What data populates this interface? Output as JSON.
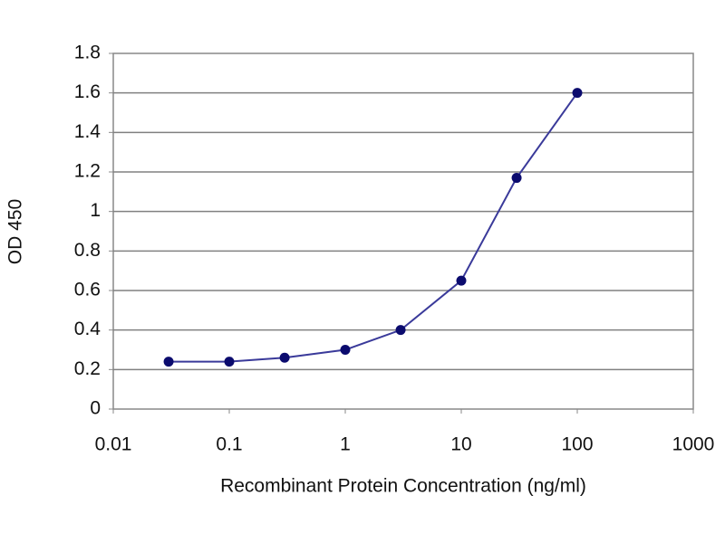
{
  "chart_data": {
    "type": "line",
    "x_label": "Recombinant Protein Concentration (ng/ml)",
    "y_label": "OD 450",
    "x": [
      0.03,
      0.1,
      0.3,
      1,
      3,
      10,
      30,
      100
    ],
    "values": [
      0.24,
      0.24,
      0.26,
      0.3,
      0.4,
      0.65,
      1.17,
      1.6
    ],
    "line_color": "#3a3a9a",
    "marker_color": "#0b0b6e",
    "xscale": "log",
    "xlim": [
      0.01,
      1000
    ],
    "xticks": [
      0.01,
      0.1,
      1,
      10,
      100,
      1000
    ],
    "ylim": [
      0,
      1.8
    ],
    "yticks": [
      0,
      0.2,
      0.4,
      0.6,
      0.8,
      1,
      1.2,
      1.4,
      1.6,
      1.8
    ],
    "grid": true,
    "grid_color": "#808080"
  }
}
